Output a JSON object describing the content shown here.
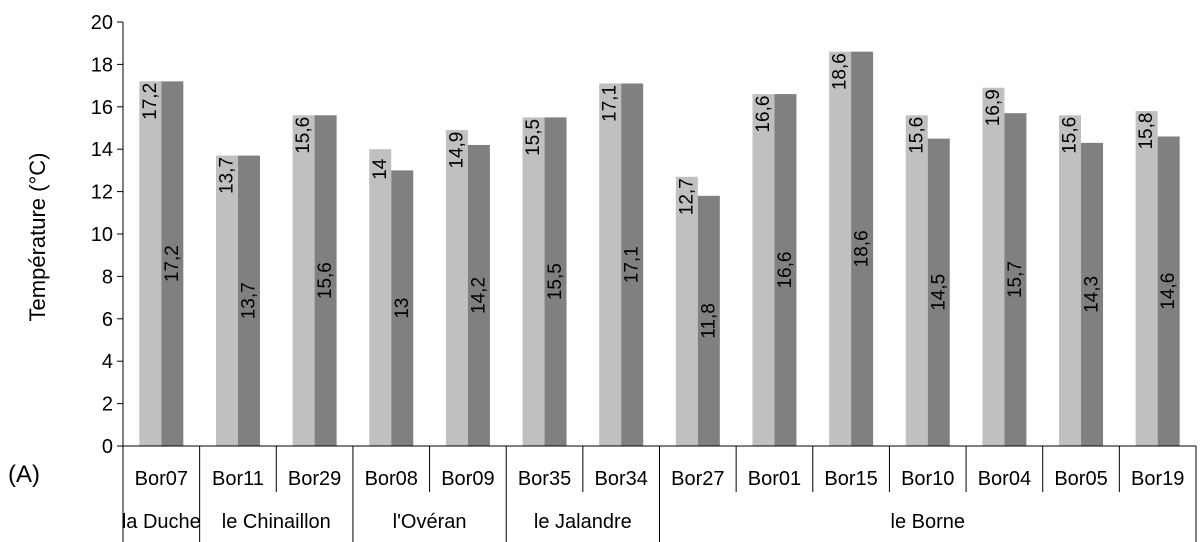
{
  "panel_label": "(A)",
  "chart_data": {
    "type": "bar",
    "ylabel": "Température (°C)",
    "ylim": [
      0,
      20
    ],
    "yticks": [
      "0",
      "2",
      "4",
      "6",
      "8",
      "10",
      "12",
      "14",
      "16",
      "18",
      "20"
    ],
    "categories": [
      "Bor07",
      "Bor11",
      "Bor29",
      "Bor08",
      "Bor09",
      "Bor35",
      "Bor34",
      "Bor27",
      "Bor01",
      "Bor15",
      "Bor10",
      "Bor04",
      "Bor05",
      "Bor19"
    ],
    "groups": [
      {
        "label": "la Duche",
        "categories": [
          "Bor07"
        ]
      },
      {
        "label": "le Chinaillon",
        "categories": [
          "Bor11",
          "Bor29"
        ]
      },
      {
        "label": "l'Ovéran",
        "categories": [
          "Bor08",
          "Bor09"
        ]
      },
      {
        "label": "le Jalandre",
        "categories": [
          "Bor35",
          "Bor34"
        ]
      },
      {
        "label": "le Borne",
        "categories": [
          "Bor27",
          "Bor01",
          "Bor15",
          "Bor10",
          "Bor04",
          "Bor05",
          "Bor19"
        ]
      }
    ],
    "series": [
      {
        "color": "#c0c0c0",
        "values": [
          17.2,
          13.7,
          15.6,
          14,
          14.9,
          15.5,
          17.1,
          12.7,
          16.6,
          18.6,
          15.6,
          16.9,
          15.6,
          15.8
        ],
        "labels": [
          "17,2",
          "13,7",
          "15,6",
          "14",
          "14,9",
          "15,5",
          "17,1",
          "12,7",
          "16,6",
          "18,6",
          "15,6",
          "16,9",
          "15,6",
          "15,8"
        ]
      },
      {
        "color": "#808080",
        "values": [
          17.2,
          13.7,
          15.6,
          13,
          14.2,
          15.5,
          17.1,
          11.8,
          16.6,
          18.6,
          14.5,
          15.7,
          14.3,
          14.6
        ],
        "labels": [
          "17,2",
          "13,7",
          "15,6",
          "13",
          "14,2",
          "15,5",
          "17,1",
          "11,8",
          "16,6",
          "18,6",
          "14,5",
          "15,7",
          "14,3",
          "14,6"
        ]
      }
    ],
    "grid": false,
    "legend": "none"
  }
}
